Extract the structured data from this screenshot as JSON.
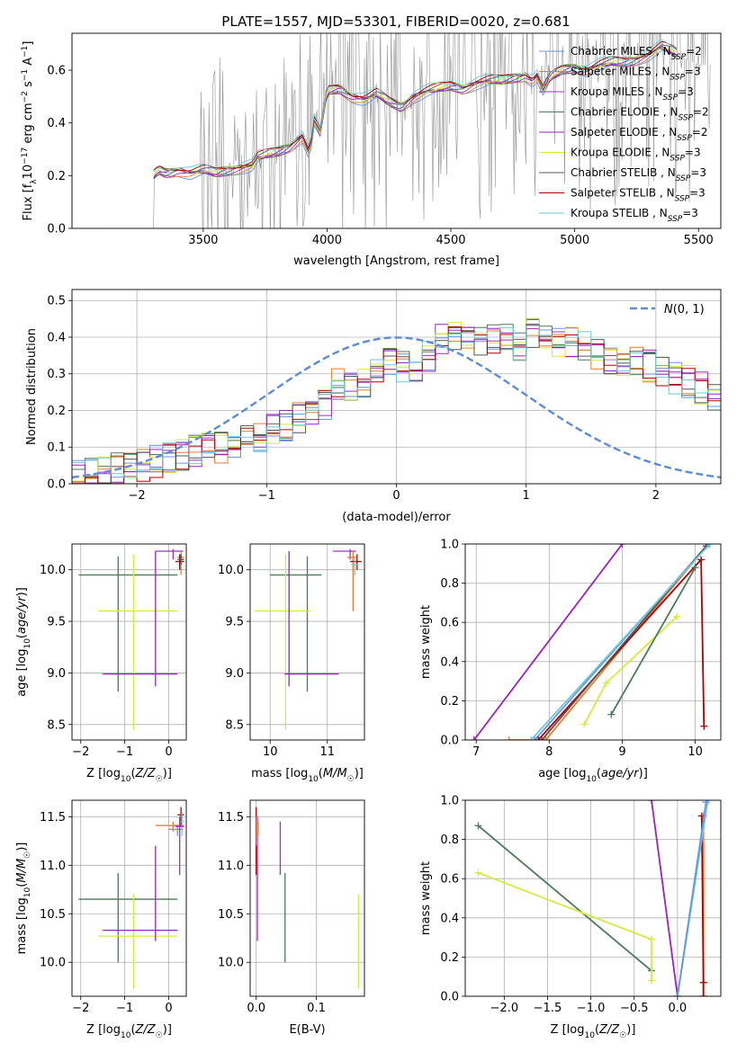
{
  "figure_title": "PLATE=1557, MJD=53301, FIBERID=0020, z=0.681",
  "colors": {
    "Chabrier MILES": "#6495ed",
    "Salpeter MILES": "#f07c2a",
    "Kroupa MILES": "#9b30c8",
    "Chabrier ELODIE": "#4a7a5a",
    "Salpeter ELODIE": "#9a22c0",
    "Kroupa ELODIE": "#d4ec3c",
    "Chabrier STELIB": "#555555",
    "Salpeter STELIB": "#b00000",
    "Kroupa STELIB": "#6ccad8",
    "data": "#7f7f7f",
    "normal": "#5b8cd8"
  },
  "chart_data": [
    {
      "id": "spectrum",
      "type": "line",
      "title": "PLATE=1557, MJD=53301, FIBERID=0020, z=0.681",
      "xlabel": "wavelength [Angstrom, rest frame]",
      "ylabel": "Flux [f_λ 10^-17 erg cm^-2 s^-1 A^-1]",
      "xlim": [
        2970,
        5590
      ],
      "ylim": [
        0,
        0.74
      ],
      "xticks": [
        3500,
        4000,
        4500,
        5000,
        5500
      ],
      "yticks": [
        0.0,
        0.2,
        0.4,
        0.6
      ],
      "grid": false,
      "legend": "top-right",
      "legend_entries": [
        "Chabrier MILES, N_SSP=2",
        "Salpeter MILES, N_SSP=3",
        "Kroupa MILES, N_SSP=3",
        "Chabrier ELODIE, N_SSP=2",
        "Salpeter ELODIE, N_SSP=2",
        "Kroupa ELODIE, N_SSP=3",
        "Chabrier STELIB, N_SSP=3",
        "Salpeter STELIB, N_SSP=3",
        "Kroupa STELIB, N_SSP=3"
      ],
      "model_continuum": {
        "x": [
          3300,
          3320,
          3350,
          3400,
          3450,
          3500,
          3550,
          3600,
          3650,
          3700,
          3720,
          3760,
          3800,
          3850,
          3900,
          3930,
          3950,
          3970,
          4000,
          4050,
          4100,
          4150,
          4200,
          4250,
          4300,
          4350,
          4400,
          4450,
          4500,
          4550,
          4600,
          4650,
          4700,
          4750,
          4800,
          4830,
          4850,
          4870,
          4900,
          4950,
          5000,
          5050,
          5100,
          5150,
          5200,
          5250,
          5300,
          5350,
          5400,
          5450,
          5500
        ],
        "y": [
          0.2,
          0.22,
          0.21,
          0.22,
          0.21,
          0.22,
          0.21,
          0.22,
          0.23,
          0.24,
          0.27,
          0.28,
          0.29,
          0.31,
          0.35,
          0.28,
          0.42,
          0.35,
          0.52,
          0.53,
          0.5,
          0.49,
          0.51,
          0.48,
          0.46,
          0.5,
          0.52,
          0.53,
          0.54,
          0.53,
          0.55,
          0.56,
          0.56,
          0.57,
          0.58,
          0.56,
          0.58,
          0.52,
          0.57,
          0.6,
          0.61,
          0.6,
          0.62,
          0.63,
          0.63,
          0.64,
          0.66,
          0.69,
          0.67,
          0.64,
          0.62
        ]
      }
    },
    {
      "id": "residuals",
      "type": "histogram",
      "xlabel": "(data-model)/error",
      "ylabel": "Normed distribution",
      "xlim": [
        -2.5,
        2.5
      ],
      "ylim": [
        0,
        0.53
      ],
      "xticks": [
        -2,
        -1,
        0,
        1,
        2
      ],
      "yticks": [
        0.0,
        0.1,
        0.2,
        0.3,
        0.4,
        0.5
      ],
      "grid": true,
      "legend": "top-right",
      "legend_entries": [
        "N(0, 1)"
      ],
      "bin_width": 0.1,
      "bin_start": -2.5,
      "base_heights": [
        0.02,
        0.03,
        0.03,
        0.04,
        0.05,
        0.05,
        0.06,
        0.07,
        0.08,
        0.09,
        0.1,
        0.1,
        0.11,
        0.12,
        0.13,
        0.15,
        0.16,
        0.18,
        0.2,
        0.22,
        0.27,
        0.27,
        0.28,
        0.3,
        0.33,
        0.32,
        0.32,
        0.35,
        0.4,
        0.4,
        0.4,
        0.39,
        0.39,
        0.4,
        0.38,
        0.41,
        0.39,
        0.38,
        0.39,
        0.37,
        0.35,
        0.33,
        0.33,
        0.33,
        0.32,
        0.3,
        0.29,
        0.28,
        0.26,
        0.24,
        0.24,
        0.22,
        0.2,
        0.2,
        0.18,
        0.16,
        0.15,
        0.13,
        0.12,
        0.11,
        0.1,
        0.09,
        0.09,
        0.08,
        0.07,
        0.06,
        0.06,
        0.05,
        0.05,
        0.04,
        0.04,
        0.03,
        0.03,
        0.03,
        0.03
      ],
      "normal": {
        "mu": 0,
        "sigma": 1
      }
    },
    {
      "id": "Z-age",
      "type": "scatter",
      "xlabel": "Z [log10(Z/Z☉)]",
      "ylabel": "age [log10(age/yr)]",
      "xlim": [
        -2.2,
        0.4
      ],
      "ylim": [
        8.35,
        10.25
      ],
      "xticks": [
        -2,
        -1,
        0
      ],
      "yticks": [
        8.5,
        9.0,
        9.5,
        10.0
      ],
      "grid": true,
      "points": [
        {
          "m": "Chabrier ELODIE",
          "x": -1.15,
          "y": 9.95,
          "xe": [
            -2.05,
            0.2
          ],
          "ye": [
            8.82,
            10.13
          ]
        },
        {
          "m": "Kroupa ELODIE",
          "x": -0.8,
          "y": 9.6,
          "xe": [
            -1.6,
            0.2
          ],
          "ye": [
            8.45,
            10.15
          ]
        },
        {
          "m": "Salpeter ELODIE",
          "x": -0.3,
          "y": 8.99,
          "xe": [
            -1.5,
            0.2
          ],
          "ye": [
            8.87,
            10.18
          ]
        },
        {
          "m": "Kroupa MILES",
          "x": 0.1,
          "y": 10.18,
          "xe": [
            -0.3,
            0.33
          ],
          "ye": [
            10.1,
            10.2
          ]
        },
        {
          "m": "Salpeter MILES",
          "x": 0.28,
          "y": 10.12,
          "xe": [
            0.2,
            0.35
          ],
          "ye": [
            9.95,
            10.18
          ]
        },
        {
          "m": "Salpeter STELIB",
          "x": 0.25,
          "y": 10.08,
          "xe": [
            0.15,
            0.35
          ],
          "ye": [
            10.0,
            10.15
          ]
        },
        {
          "m": "Chabrier STELIB",
          "x": 0.28,
          "y": 10.1,
          "xe": [
            0.2,
            0.35
          ],
          "ye": [
            10.05,
            10.15
          ]
        }
      ]
    },
    {
      "id": "mass-age",
      "type": "scatter",
      "xlabel": "mass [log10(M/M☉)]",
      "ylabel": "",
      "xlim": [
        9.65,
        11.65
      ],
      "ylim": [
        8.35,
        10.25
      ],
      "xticks": [
        10,
        11
      ],
      "yticks": [
        8.5,
        9.0,
        9.5,
        10.0
      ],
      "grid": true,
      "points": [
        {
          "m": "Chabrier ELODIE",
          "x": 10.65,
          "y": 9.95,
          "xe": [
            10.0,
            10.9
          ],
          "ye": [
            8.82,
            10.13
          ]
        },
        {
          "m": "Kroupa ELODIE",
          "x": 10.27,
          "y": 9.6,
          "xe": [
            9.73,
            10.7
          ],
          "ye": [
            8.45,
            10.15
          ]
        },
        {
          "m": "Salpeter ELODIE",
          "x": 10.33,
          "y": 8.99,
          "xe": [
            10.25,
            11.2
          ],
          "ye": [
            8.87,
            10.18
          ]
        },
        {
          "m": "Kroupa MILES",
          "x": 11.4,
          "y": 10.18,
          "xe": [
            11.1,
            11.5
          ],
          "ye": [
            10.1,
            10.2
          ]
        },
        {
          "m": "Salpeter MILES",
          "x": 11.45,
          "y": 10.12,
          "xe": [
            11.35,
            11.5
          ],
          "ye": [
            9.6,
            10.18
          ]
        },
        {
          "m": "Salpeter STELIB",
          "x": 11.52,
          "y": 10.08,
          "xe": [
            11.4,
            11.6
          ],
          "ye": [
            10.0,
            10.15
          ]
        },
        {
          "m": "Kroupa STELIB",
          "x": 11.48,
          "y": 10.05,
          "xe": [
            11.42,
            11.55
          ],
          "ye": [
            9.95,
            10.12
          ]
        }
      ]
    },
    {
      "id": "Z-mass",
      "type": "scatter",
      "xlabel": "Z [log10(Z/Z☉)]",
      "ylabel": "mass [log10(M/M☉)]",
      "xlim": [
        -2.2,
        0.4
      ],
      "ylim": [
        9.65,
        11.67
      ],
      "xticks": [
        -2,
        -1,
        0
      ],
      "yticks": [
        10.0,
        10.5,
        11.0,
        11.5
      ],
      "grid": true,
      "points": [
        {
          "m": "Chabrier ELODIE",
          "x": -1.15,
          "y": 10.65,
          "xe": [
            -2.05,
            0.2
          ],
          "ye": [
            10.0,
            10.92
          ]
        },
        {
          "m": "Kroupa ELODIE",
          "x": -0.8,
          "y": 10.27,
          "xe": [
            -1.6,
            0.2
          ],
          "ye": [
            9.73,
            10.7
          ]
        },
        {
          "m": "Salpeter ELODIE",
          "x": -0.3,
          "y": 10.33,
          "xe": [
            -1.5,
            0.2
          ],
          "ye": [
            10.22,
            11.2
          ]
        },
        {
          "m": "Salpeter MILES",
          "x": 0.1,
          "y": 11.41,
          "xe": [
            -0.3,
            0.35
          ],
          "ye": [
            11.35,
            11.45
          ]
        },
        {
          "m": "Chabrier MILES",
          "x": 0.2,
          "y": 11.37,
          "xe": [
            0.0,
            0.33
          ],
          "ye": [
            11.3,
            11.42
          ]
        },
        {
          "m": "Salpeter STELIB",
          "x": 0.28,
          "y": 11.52,
          "xe": [
            0.2,
            0.35
          ],
          "ye": [
            11.4,
            11.6
          ]
        },
        {
          "m": "Kroupa STELIB",
          "x": 0.3,
          "y": 11.45,
          "xe": [
            0.25,
            0.35
          ],
          "ye": [
            11.3,
            11.55
          ]
        },
        {
          "m": "Kroupa MILES",
          "x": 0.25,
          "y": 11.4,
          "xe": [
            0.15,
            0.35
          ],
          "ye": [
            10.9,
            11.5
          ]
        }
      ]
    },
    {
      "id": "ebv-mass",
      "type": "errorbar",
      "xlabel": "E(B-V)",
      "ylabel": "",
      "xlim": [
        -0.01,
        0.18
      ],
      "ylim": [
        9.65,
        11.67
      ],
      "xticks": [
        0.0,
        0.1
      ],
      "yticks": [
        10.0,
        10.5,
        11.0,
        11.5
      ],
      "grid": true,
      "points": [
        {
          "m": "Salpeter STELIB",
          "x": 0.0,
          "ye": [
            10.9,
            11.6
          ]
        },
        {
          "m": "Kroupa MILES",
          "x": 0.002,
          "ye": [
            10.22,
            11.5
          ]
        },
        {
          "m": "Kroupa STELIB",
          "x": 0.001,
          "ye": [
            11.2,
            11.5
          ]
        },
        {
          "m": "Salpeter MILES",
          "x": 0.003,
          "ye": [
            11.3,
            11.45
          ]
        },
        {
          "m": "Kroupa MILES",
          "x": 0.04,
          "ye": [
            10.9,
            11.45
          ]
        },
        {
          "m": "Chabrier ELODIE",
          "x": 0.048,
          "ye": [
            10.0,
            10.92
          ]
        },
        {
          "m": "Kroupa ELODIE",
          "x": 0.17,
          "ye": [
            9.73,
            10.7
          ]
        }
      ]
    },
    {
      "id": "age-weight",
      "type": "line",
      "xlabel": "age [log10(age/yr)]",
      "ylabel": "mass weight",
      "xlim": [
        6.85,
        10.35
      ],
      "ylim": [
        0,
        1.0
      ],
      "xticks": [
        7,
        8,
        9,
        10
      ],
      "yticks": [
        0.0,
        0.2,
        0.4,
        0.6,
        0.8,
        1.0
      ],
      "grid": true,
      "series": [
        {
          "m": "Salpeter ELODIE",
          "x": [
            6.97,
            9.0
          ],
          "y": [
            0.0,
            1.0
          ]
        },
        {
          "m": "Salpeter MILES",
          "x": [
            7.45,
            7.95,
            10.18
          ],
          "y": [
            0.0,
            0.0,
            1.0
          ]
        },
        {
          "m": "Chabrier MILES",
          "x": [
            7.8,
            10.18
          ],
          "y": [
            0.0,
            1.0
          ]
        },
        {
          "m": "Salpeter STELIB",
          "x": [
            7.85,
            10.08,
            10.12
          ],
          "y": [
            0.0,
            0.92,
            0.07
          ]
        },
        {
          "m": "Chabrier STELIB",
          "x": [
            7.9,
            10.15
          ],
          "y": [
            0.0,
            0.99
          ]
        },
        {
          "m": "Kroupa STELIB",
          "x": [
            7.75,
            10.2
          ],
          "y": [
            0.0,
            1.0
          ]
        },
        {
          "m": "Kroupa ELODIE",
          "x": [
            8.48,
            8.78,
            9.75
          ],
          "y": [
            0.08,
            0.29,
            0.63
          ]
        },
        {
          "m": "Chabrier ELODIE",
          "x": [
            8.85,
            10.0
          ],
          "y": [
            0.13,
            0.88
          ]
        }
      ]
    },
    {
      "id": "Z-weight",
      "type": "line",
      "xlabel": "Z [log10(Z/Z☉)]",
      "ylabel": "mass weight",
      "xlim": [
        -2.45,
        0.5
      ],
      "ylim": [
        0,
        1.0
      ],
      "xticks": [
        -2.0,
        -1.5,
        -1.0,
        -0.5,
        0.0
      ],
      "yticks": [
        0.0,
        0.2,
        0.4,
        0.6,
        0.8,
        1.0
      ],
      "grid": true,
      "series": [
        {
          "m": "Chabrier ELODIE",
          "x": [
            -2.3,
            -0.3
          ],
          "y": [
            0.87,
            0.13
          ]
        },
        {
          "m": "Kroupa ELODIE",
          "x": [
            -2.3,
            -0.3,
            -0.3
          ],
          "y": [
            0.63,
            0.29,
            0.08
          ]
        },
        {
          "m": "Salpeter ELODIE",
          "x": [
            -0.3,
            0.0
          ],
          "y": [
            1.0,
            0.0
          ]
        },
        {
          "m": "Salpeter MILES",
          "x": [
            0.3,
            0.3,
            0.3
          ],
          "y": [
            0.0,
            0.92,
            0.07
          ]
        },
        {
          "m": "Salpeter STELIB",
          "x": [
            0.28,
            0.3,
            0.3
          ],
          "y": [
            0.92,
            0.07,
            0.0
          ]
        },
        {
          "m": "Kroupa STELIB",
          "x": [
            0.0,
            0.35
          ],
          "y": [
            0.0,
            1.0
          ]
        },
        {
          "m": "Chabrier MILES",
          "x": [
            0.0,
            0.33
          ],
          "y": [
            0.0,
            0.99
          ]
        }
      ]
    }
  ]
}
